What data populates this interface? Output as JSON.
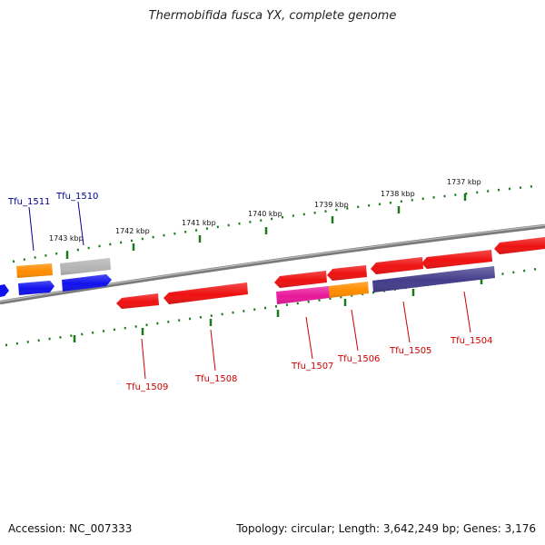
{
  "title": "Thermobifida fusca YX, complete genome",
  "footer": {
    "accession": "Accession: NC_007333",
    "summary": "Topology: circular; Length: 3,642,249 bp; Genes: 3,176"
  },
  "colors": {
    "backbone": "#7a7a7a",
    "tick": "#1a7a1a",
    "forward_label": "#00008b",
    "reverse_label": "#cc0000",
    "red": "#ee1111",
    "orange": "#ff8c00",
    "blue": "#1111ee",
    "grey": "#b4b4b4",
    "magenta": "#e8189a",
    "slate": "#443d8b"
  },
  "ticks": [
    {
      "label": "1737 kbp"
    },
    {
      "label": "1738 kbp"
    },
    {
      "label": "1739 kbp"
    },
    {
      "label": "1740 kbp"
    },
    {
      "label": "1741 kbp"
    },
    {
      "label": "1742 kbp"
    },
    {
      "label": "1743 kbp"
    }
  ],
  "genes": [
    {
      "name": "Tfu_1511",
      "strand": "forward"
    },
    {
      "name": "Tfu_1510",
      "strand": "forward"
    },
    {
      "name": "Tfu_1509",
      "strand": "reverse"
    },
    {
      "name": "Tfu_1508",
      "strand": "reverse"
    },
    {
      "name": "Tfu_1507",
      "strand": "reverse"
    },
    {
      "name": "Tfu_1506",
      "strand": "reverse"
    },
    {
      "name": "Tfu_1505",
      "strand": "reverse"
    },
    {
      "name": "Tfu_1504",
      "strand": "reverse"
    }
  ]
}
